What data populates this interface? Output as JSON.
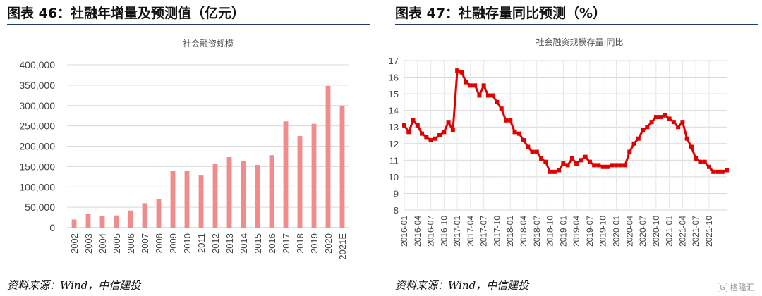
{
  "panels": {
    "left": {
      "heading": "图表 46：社融年增量及预测值（亿元）",
      "source": "资料来源：Wind，中信建投"
    },
    "right": {
      "heading": "图表 47：社融存量同比预测（%）",
      "source": "资料来源：Wind，中信建投"
    }
  },
  "watermark": {
    "icon": "logo-icon",
    "text": "格隆汇"
  },
  "chart_data": [
    {
      "type": "bar",
      "title": "社会融资规模",
      "categories": [
        "2002",
        "2003",
        "2004",
        "2005",
        "2006",
        "2007",
        "2008",
        "2009",
        "2010",
        "2011",
        "2012",
        "2013",
        "2014",
        "2015",
        "2016",
        "2017",
        "2018",
        "2019",
        "2020",
        "2021E"
      ],
      "values": [
        20000,
        34000,
        29000,
        30000,
        42000,
        60000,
        70000,
        139000,
        140000,
        128000,
        157000,
        173000,
        164000,
        154000,
        178000,
        261000,
        225000,
        255000,
        348000,
        300000
      ],
      "ylim": [
        0,
        400000
      ],
      "yticks": [
        "0",
        "50,000",
        "100,000",
        "150,000",
        "200,000",
        "250,000",
        "300,000",
        "350,000",
        "400,000"
      ],
      "color": "#f08c8c",
      "grid": true
    },
    {
      "type": "line",
      "title": "社会融资规模存量:同比",
      "ylim": [
        8,
        17
      ],
      "yticks": [
        "8",
        "9",
        "10",
        "11",
        "12",
        "13",
        "14",
        "15",
        "16",
        "17"
      ],
      "xticks": [
        "2016-01",
        "2016-04",
        "2016-07",
        "2016-10",
        "2017-01",
        "2017-04",
        "2017-07",
        "2017-10",
        "2018-01",
        "2018-04",
        "2018-07",
        "2018-10",
        "2019-01",
        "2019-04",
        "2019-07",
        "2019-10",
        "2020-01",
        "2020-04",
        "2020-07",
        "2020-10",
        "2021-01",
        "2021-04",
        "2021-07",
        "2021-10"
      ],
      "x_start": "2016-01",
      "values": [
        13.1,
        12.7,
        13.4,
        13.1,
        12.6,
        12.4,
        12.2,
        12.3,
        12.5,
        12.7,
        13.3,
        12.8,
        16.4,
        16.3,
        15.7,
        15.5,
        15.5,
        14.9,
        15.5,
        14.9,
        14.9,
        14.5,
        14.1,
        13.4,
        13.4,
        12.7,
        12.6,
        12.2,
        11.8,
        11.5,
        11.5,
        11.1,
        10.9,
        10.3,
        10.3,
        10.4,
        10.8,
        10.7,
        11.1,
        10.8,
        11.0,
        11.2,
        10.9,
        10.7,
        10.7,
        10.6,
        10.6,
        10.7,
        10.7,
        10.7,
        10.7,
        11.5,
        12.0,
        12.3,
        12.8,
        13.0,
        13.3,
        13.6,
        13.6,
        13.7,
        13.5,
        13.3,
        13.0,
        13.3,
        12.3,
        11.8,
        11.1,
        10.9,
        10.9,
        10.6,
        10.3,
        10.3,
        10.3,
        10.4
      ],
      "color": "#e00000",
      "grid": true
    }
  ]
}
